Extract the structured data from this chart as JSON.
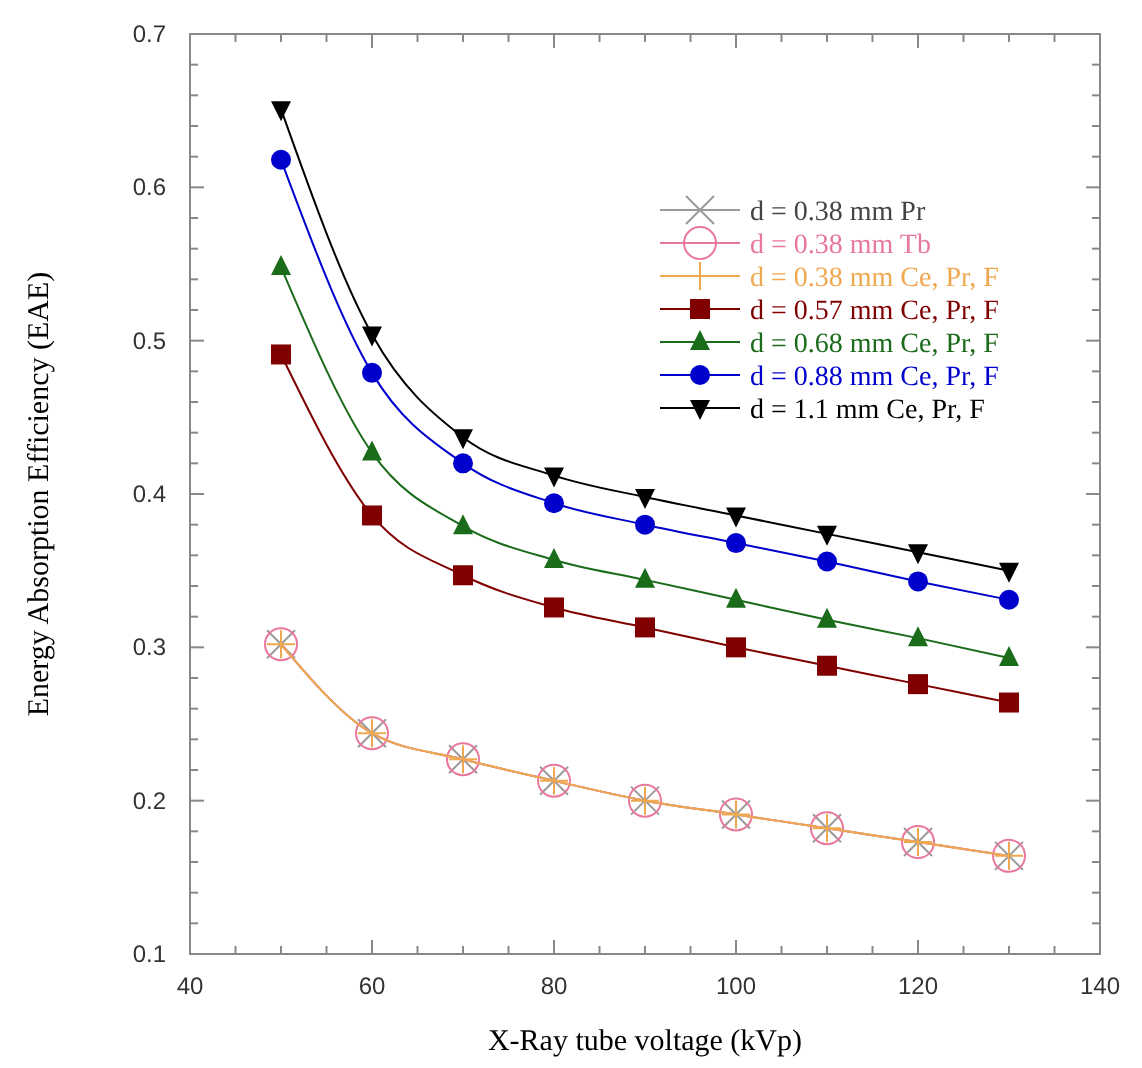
{
  "chart_data": {
    "type": "line",
    "xlabel": "X-Ray tube voltage (kVp)",
    "ylabel": "Energy Absorption Efficiency (EAE)",
    "x": [
      50,
      60,
      70,
      80,
      90,
      100,
      110,
      120,
      130
    ],
    "xlim": [
      40,
      140
    ],
    "xticks": [
      40,
      {
        "value": 45,
        "label": null
      },
      60,
      {
        "value": 50,
        "label": null
      },
      {
        "value": 55,
        "label": null
      },
      {
        "value": 65,
        "label": null
      },
      {
        "value": 70,
        "label": null
      },
      {
        "value": 75,
        "label": null
      },
      80,
      {
        "value": 85,
        "label": null
      },
      {
        "value": 90,
        "label": null
      },
      {
        "value": 95,
        "label": null
      },
      100,
      {
        "value": 105,
        "label": null
      },
      {
        "value": 110,
        "label": null
      },
      {
        "value": 115,
        "label": null
      },
      120,
      {
        "value": 125,
        "label": null
      },
      {
        "value": 130,
        "label": null
      },
      {
        "value": 135,
        "label": null
      },
      140
    ],
    "ylim": [
      0.1,
      0.7
    ],
    "yticks": [
      0.1,
      {
        "value": 0.12,
        "label": null
      },
      {
        "value": 0.14,
        "label": null
      },
      {
        "value": 0.16,
        "label": null
      },
      {
        "value": 0.18,
        "label": null
      },
      0.2,
      {
        "value": 0.22,
        "label": null
      },
      {
        "value": 0.24,
        "label": null
      },
      {
        "value": 0.26,
        "label": null
      },
      {
        "value": 0.28,
        "label": null
      },
      0.3,
      {
        "value": 0.32,
        "label": null
      },
      {
        "value": 0.34,
        "label": null
      },
      {
        "value": 0.36,
        "label": null
      },
      {
        "value": 0.38,
        "label": null
      },
      0.4,
      {
        "value": 0.42,
        "label": null
      },
      {
        "value": 0.44,
        "label": null
      },
      {
        "value": 0.46,
        "label": null
      },
      {
        "value": 0.48,
        "label": null
      },
      0.5,
      {
        "value": 0.52,
        "label": null
      },
      {
        "value": 0.54,
        "label": null
      },
      {
        "value": 0.56,
        "label": null
      },
      {
        "value": 0.58,
        "label": null
      },
      0.6,
      {
        "value": 0.62,
        "label": null
      },
      {
        "value": 0.64,
        "label": null
      },
      {
        "value": 0.66,
        "label": null
      },
      {
        "value": 0.68,
        "label": null
      },
      0.7
    ],
    "grid": false,
    "legend": "top right",
    "line_style": "solid",
    "series": [
      {
        "name": "d = 0.38 mm Pr",
        "color": "#9a9a9a",
        "marker": "cross",
        "values": [
          0.302,
          0.244,
          0.227,
          0.213,
          0.2,
          0.191,
          0.182,
          0.173,
          0.164
        ]
      },
      {
        "name": "d = 0.38 mm Tb",
        "color": "#e8799a",
        "marker": "circle",
        "values": [
          0.302,
          0.244,
          0.227,
          0.213,
          0.2,
          0.191,
          0.182,
          0.173,
          0.164
        ]
      },
      {
        "name": "d = 0.38 mm Ce, Pr, F",
        "color": "#f0a850",
        "marker": "plus",
        "values": [
          0.302,
          0.244,
          0.227,
          0.213,
          0.2,
          0.191,
          0.182,
          0.173,
          0.164
        ]
      },
      {
        "name": "d = 0.57 mm Ce, Pr, F",
        "color": "#800000",
        "marker": "square",
        "values": [
          0.491,
          0.386,
          0.347,
          0.326,
          0.313,
          0.3,
          0.288,
          0.276,
          0.264
        ]
      },
      {
        "name": "d = 0.68 mm Ce, Pr, F",
        "color": "#1a6b1a",
        "marker": "triangle",
        "values": [
          0.548,
          0.427,
          0.379,
          0.357,
          0.344,
          0.331,
          0.318,
          0.306,
          0.293
        ]
      },
      {
        "name": "d = 0.88 mm Ce, Pr, F",
        "color": "#0000cc",
        "marker": "circle",
        "values": [
          0.618,
          0.479,
          0.42,
          0.394,
          0.38,
          0.368,
          0.356,
          0.343,
          0.331
        ]
      },
      {
        "name": "d = 1.1 mm Ce, Pr, F",
        "color": "#000000",
        "marker": "triangle-down",
        "values": [
          0.651,
          0.504,
          0.437,
          0.412,
          0.398,
          0.386,
          0.374,
          0.362,
          0.35
        ]
      }
    ]
  }
}
